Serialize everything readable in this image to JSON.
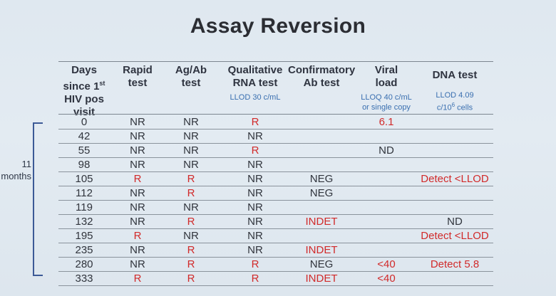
{
  "title": "Assay Reversion",
  "headers": {
    "days": [
      "Days",
      "since 1",
      "HIV pos",
      "visit"
    ],
    "days_sup": "st",
    "rapid": [
      "Rapid",
      "test"
    ],
    "agab": [
      "Ag/Ab",
      "test"
    ],
    "rna": [
      "Qualitative",
      "RNA test"
    ],
    "rna_sub": "LLOD 30 c/mL",
    "conf": [
      "Confirmatory",
      "Ab test"
    ],
    "vl": [
      "Viral",
      "load"
    ],
    "vl_sub": [
      "LLOQ 40 c/mL",
      "or single copy"
    ],
    "dna": [
      "DNA test"
    ],
    "dna_sub": [
      "LLOD 4.09",
      "c/10",
      "6",
      " cells"
    ]
  },
  "bracket_label": [
    "11",
    "months"
  ],
  "rows": [
    {
      "days": "0",
      "rapid": "NR",
      "agab": "NR",
      "rna": "R",
      "conf": "",
      "vl": "6.1",
      "dna": ""
    },
    {
      "days": "42",
      "rapid": "NR",
      "agab": "NR",
      "rna": "NR",
      "conf": "",
      "vl": "",
      "dna": ""
    },
    {
      "days": "55",
      "rapid": "NR",
      "agab": "NR",
      "rna": "R",
      "conf": "",
      "vl": "ND",
      "dna": ""
    },
    {
      "days": "98",
      "rapid": "NR",
      "agab": "NR",
      "rna": "NR",
      "conf": "",
      "vl": "",
      "dna": ""
    },
    {
      "days": "105",
      "rapid": "R",
      "agab": "R",
      "rna": "NR",
      "conf": "NEG",
      "vl": "",
      "dna": "Detect <LLOD"
    },
    {
      "days": "112",
      "rapid": "NR",
      "agab": "R",
      "rna": "NR",
      "conf": "NEG",
      "vl": "",
      "dna": ""
    },
    {
      "days": "119",
      "rapid": "NR",
      "agab": "NR",
      "rna": "NR",
      "conf": "",
      "vl": "",
      "dna": ""
    },
    {
      "days": "132",
      "rapid": "NR",
      "agab": "R",
      "rna": "NR",
      "conf": "INDET",
      "vl": "",
      "dna": "ND"
    },
    {
      "days": "195",
      "rapid": "R",
      "agab": "NR",
      "rna": "NR",
      "conf": "",
      "vl": "",
      "dna": "Detect <LLOD"
    },
    {
      "days": "235",
      "rapid": "NR",
      "agab": "R",
      "rna": "NR",
      "conf": "INDET",
      "vl": "",
      "dna": ""
    },
    {
      "days": "280",
      "rapid": "NR",
      "agab": "R",
      "rna": "R",
      "conf": "NEG",
      "vl": "<40",
      "dna": "Detect 5.8"
    },
    {
      "days": "333",
      "rapid": "R",
      "agab": "R",
      "rna": "R",
      "conf": "INDET",
      "vl": "<40",
      "dna": ""
    }
  ],
  "red_cells": [
    [
      0,
      "rna"
    ],
    [
      0,
      "vl"
    ],
    [
      2,
      "rna"
    ],
    [
      4,
      "rapid"
    ],
    [
      4,
      "agab"
    ],
    [
      4,
      "dna"
    ],
    [
      5,
      "agab"
    ],
    [
      7,
      "agab"
    ],
    [
      7,
      "conf"
    ],
    [
      8,
      "rapid"
    ],
    [
      8,
      "dna"
    ],
    [
      9,
      "agab"
    ],
    [
      9,
      "conf"
    ],
    [
      10,
      "agab"
    ],
    [
      10,
      "rna"
    ],
    [
      10,
      "vl"
    ],
    [
      10,
      "dna"
    ],
    [
      11,
      "rapid"
    ],
    [
      11,
      "agab"
    ],
    [
      11,
      "rna"
    ],
    [
      11,
      "conf"
    ],
    [
      11,
      "vl"
    ]
  ],
  "colors": {
    "red": "#d12a2a",
    "blue": "#3a6fb0",
    "text": "#30343c"
  }
}
